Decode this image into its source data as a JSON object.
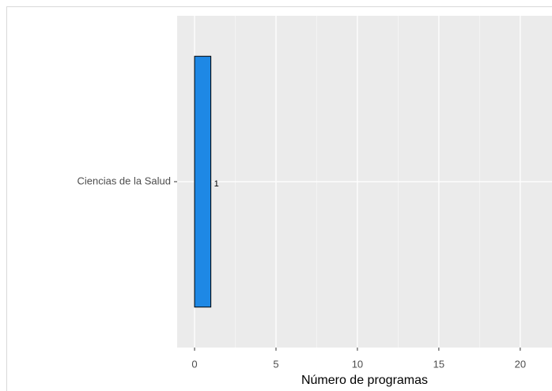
{
  "chart_data": {
    "type": "barh",
    "categories": [
      "Ciencias de la Salud"
    ],
    "values": [
      1
    ],
    "color": "#1e88e5",
    "xlabel": "Número de programas",
    "xlim": [
      -1.07,
      21.95
    ],
    "xticks": [
      0,
      5,
      10,
      15,
      20
    ],
    "grid": true
  }
}
